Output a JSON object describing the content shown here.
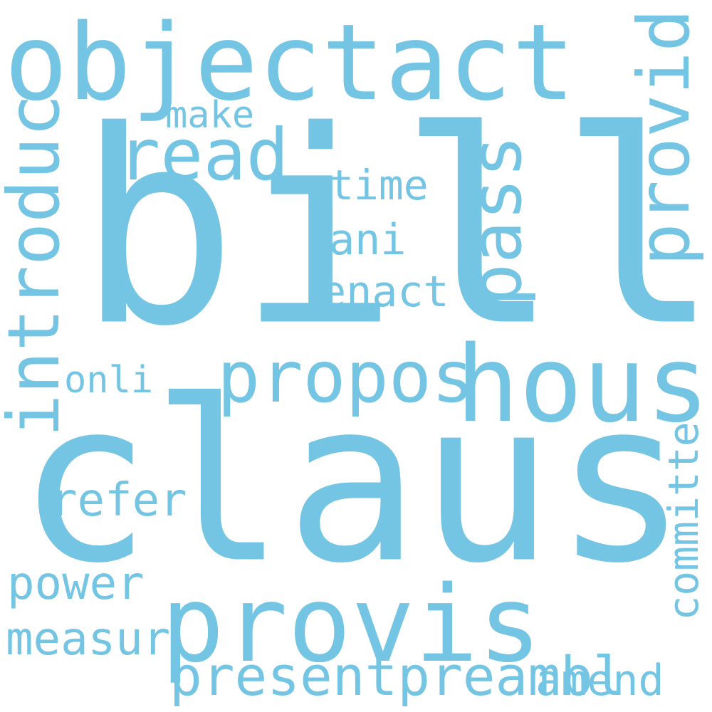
{
  "word_color": "#74c4e3",
  "background_color": "#ffffff",
  "words": {
    "bill": "bill",
    "claus": "claus",
    "objectact": "objectact",
    "provis": "provis",
    "hous": "hous",
    "propos": "propos",
    "introduc": "introduc",
    "provid": "provid",
    "read": "read",
    "pass": "pass",
    "presentpreambl": "presentpreambl",
    "amend": "amend",
    "measur": "measur",
    "power": "power",
    "refer": "refer",
    "committe": "committe",
    "enact": "enact",
    "ani": "ani",
    "time": "time",
    "make": "make",
    "onli": "onli"
  }
}
